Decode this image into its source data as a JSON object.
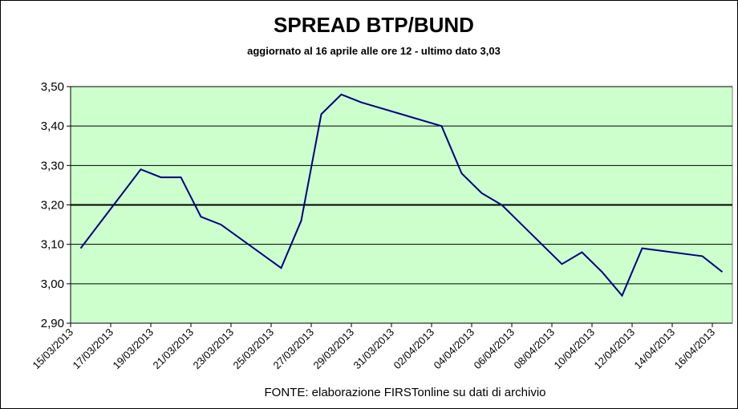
{
  "chart_data": {
    "type": "line",
    "title": "SPREAD  BTP/BUND",
    "subtitle": "aggiornato al 16 aprile alle ore 12 - ultimo dato 3,03",
    "note": "FONTE: elaborazione FIRSTonline su dati di archivio",
    "x": [
      "15/03/2013",
      "18/03/2013",
      "19/03/2013",
      "20/03/2013",
      "21/03/2013",
      "22/03/2013",
      "25/03/2013",
      "26/03/2013",
      "27/03/2013",
      "28/03/2013",
      "29/03/2013",
      "02/04/2013",
      "03/04/2013",
      "04/04/2013",
      "05/04/2013",
      "08/04/2013",
      "09/04/2013",
      "10/04/2013",
      "11/04/2013",
      "12/04/2013",
      "15/04/2013",
      "16/04/2013"
    ],
    "series": [
      {
        "name": "Spread",
        "color": "#000080",
        "values": [
          3.09,
          3.29,
          3.27,
          3.27,
          3.17,
          3.15,
          3.04,
          3.16,
          3.43,
          3.48,
          3.46,
          3.4,
          3.28,
          3.23,
          3.2,
          3.05,
          3.08,
          3.03,
          2.97,
          3.09,
          3.07,
          3.03
        ]
      }
    ],
    "xlim": [
      "15/03/2013",
      "17/04/2013"
    ],
    "xticks": [
      "15/03/2013",
      "17/03/2013",
      "19/03/2013",
      "21/03/2013",
      "23/03/2013",
      "25/03/2013",
      "27/03/2013",
      "29/03/2013",
      "31/03/2013",
      "02/04/2013",
      "04/04/2013",
      "06/04/2013",
      "08/04/2013",
      "10/04/2013",
      "12/04/2013",
      "14/04/2013",
      "16/04/2013"
    ],
    "ylim": [
      2.9,
      3.5
    ],
    "yticks": [
      {
        "value": 2.9,
        "label": "2,90"
      },
      {
        "value": 3.0,
        "label": "3,00"
      },
      {
        "value": 3.1,
        "label": "3,10"
      },
      {
        "value": 3.2,
        "label": "3,20"
      },
      {
        "value": 3.3,
        "label": "3,30"
      },
      {
        "value": 3.4,
        "label": "3,40"
      },
      {
        "value": 3.5,
        "label": "3,50"
      }
    ],
    "grid": true,
    "highlight_ytick": 3.2,
    "plot_background": "#ccffcc"
  }
}
